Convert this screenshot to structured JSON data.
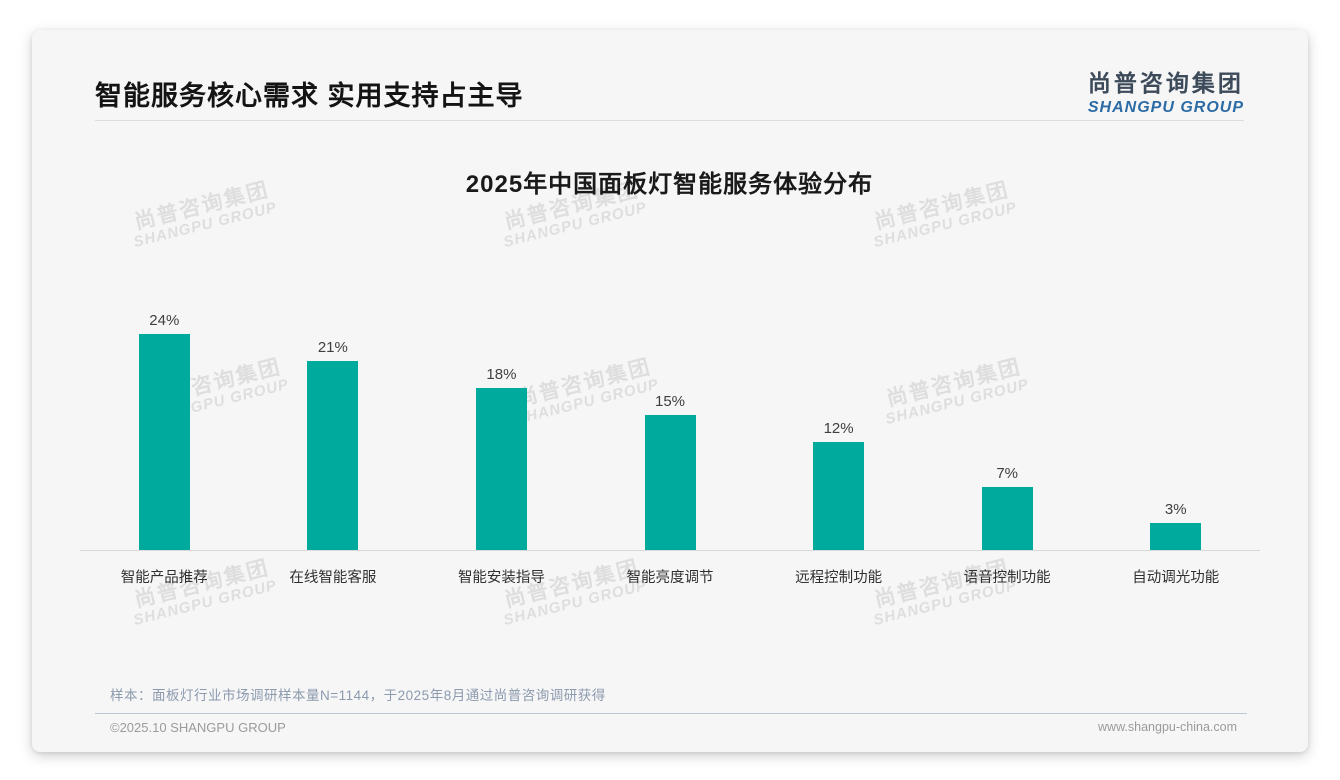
{
  "page": {
    "title": "智能服务核心需求 实用支持占主导",
    "logo": {
      "cn": "尚普咨询集团",
      "en": "SHANGPU GROUP"
    },
    "note": "样本：面板灯行业市场调研样本量N=1144，于2025年8月通过尚普咨询调研获得",
    "footer": {
      "copyright": "©2025.10 SHANGPU GROUP",
      "website": "www.shangpu-china.com"
    },
    "watermark": {
      "cn": "尚普咨询集团",
      "en": "SHANGPU GROUP"
    }
  },
  "chart_data": {
    "type": "bar",
    "title": "2025年中国面板灯智能服务体验分布",
    "categories": [
      "智能产品推荐",
      "在线智能客服",
      "智能安装指导",
      "智能亮度调节",
      "远程控制功能",
      "语音控制功能",
      "自动调光功能"
    ],
    "values": [
      24,
      21,
      18,
      15,
      12,
      7,
      3
    ],
    "value_labels": [
      "24%",
      "21%",
      "18%",
      "15%",
      "12%",
      "7%",
      "3%"
    ],
    "xlabel": "",
    "ylabel": "",
    "ylim": [
      0,
      26
    ],
    "grid": false,
    "legend": false,
    "bar_color": "#00ab9e",
    "value_label_position": "above-bar"
  }
}
